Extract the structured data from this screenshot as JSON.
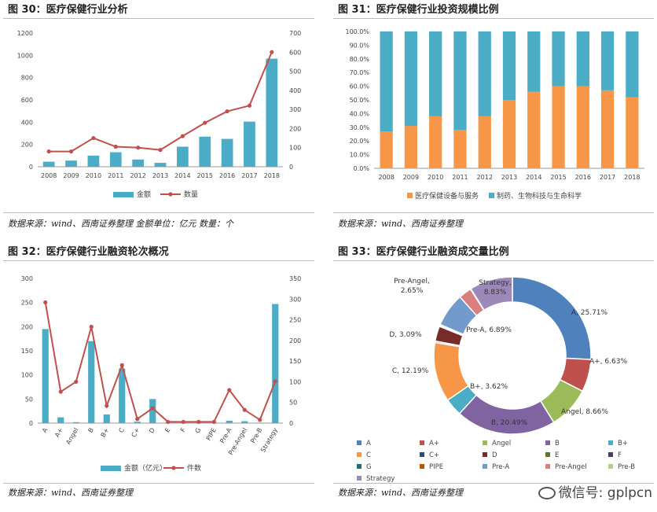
{
  "panels": {
    "p30": {
      "title": "图 30：医疗保健行业分析",
      "source": "数据来源：wind、西南证券整理  金额单位：亿元  数量：个"
    },
    "p31": {
      "title": "图 31：医疗保健行业投资规模比例",
      "source": "数据来源：wind、西南证券整理"
    },
    "p32": {
      "title": "图 32：医疗保健行业融资轮次概况",
      "source": "数据来源：wind、西南证券整理"
    },
    "p33": {
      "title": "图 33：医疗保健行业融资成交量比例",
      "source": "数据来源：wind、西南证券整理"
    }
  },
  "watermark": "微信号: gplpcn",
  "colors": {
    "bar": "#4bacc6",
    "line": "#c0504d",
    "orange": "#f79646"
  },
  "chart_data": [
    {
      "id": "fig30",
      "type": "bar",
      "categories": [
        "2008",
        "2009",
        "2010",
        "2011",
        "2012",
        "2013",
        "2014",
        "2015",
        "2016",
        "2017",
        "2018"
      ],
      "series": [
        {
          "name": "金额",
          "type": "bar",
          "axis": "left",
          "values": [
            45,
            55,
            100,
            130,
            65,
            35,
            180,
            270,
            250,
            405,
            970
          ]
        },
        {
          "name": "数量",
          "type": "line",
          "axis": "right",
          "values": [
            80,
            80,
            150,
            105,
            100,
            88,
            160,
            230,
            290,
            320,
            600
          ]
        }
      ],
      "ylim_left": [
        0,
        1200
      ],
      "yticks_left": [
        0,
        200,
        400,
        600,
        800,
        1000,
        1200
      ],
      "ylim_right": [
        0,
        700
      ],
      "yticks_right": [
        0,
        100,
        200,
        300,
        400,
        500,
        600,
        700
      ],
      "legend": "bottom"
    },
    {
      "id": "fig31",
      "type": "bar",
      "stacked": true,
      "categories": [
        "2008",
        "2009",
        "2010",
        "2011",
        "2012",
        "2013",
        "2014",
        "2015",
        "2016",
        "2017",
        "2018"
      ],
      "series": [
        {
          "name": "医疗保健设备与服务",
          "values": [
            27,
            31,
            38,
            28,
            38,
            50,
            56,
            60,
            60,
            57,
            52
          ]
        },
        {
          "name": "制药、生物科技与生命科学",
          "values": [
            73,
            69,
            62,
            72,
            62,
            50,
            44,
            40,
            40,
            43,
            48
          ]
        }
      ],
      "ylim": [
        0,
        100
      ],
      "yticks": [
        "0.0%",
        "10.0%",
        "20.0%",
        "30.0%",
        "40.0%",
        "50.0%",
        "60.0%",
        "70.0%",
        "80.0%",
        "90.0%",
        "100.0%"
      ],
      "legend": "bottom"
    },
    {
      "id": "fig32",
      "type": "bar",
      "categories": [
        "A",
        "A+",
        "Angel",
        "B",
        "B+",
        "C",
        "C+",
        "D",
        "E",
        "F",
        "G",
        "PIPE",
        "Pre-A",
        "Pre-Angel",
        "Pre-B",
        "Strategy"
      ],
      "series": [
        {
          "name": "金额（亿元）",
          "type": "bar",
          "axis": "left",
          "values": [
            195,
            12,
            2,
            170,
            18,
            113,
            3,
            50,
            1,
            1,
            1,
            1,
            5,
            4,
            1,
            247
          ]
        },
        {
          "name": "件数",
          "type": "line",
          "axis": "right",
          "values": [
            292,
            76,
            100,
            233,
            42,
            140,
            10,
            36,
            3,
            3,
            3,
            3,
            80,
            32,
            8,
            101
          ]
        }
      ],
      "ylim_left": [
        0,
        300
      ],
      "yticks_left": [
        0,
        50,
        100,
        150,
        200,
        250,
        300
      ],
      "ylim_right": [
        0,
        350
      ],
      "yticks_right": [
        0,
        50,
        100,
        150,
        200,
        250,
        300,
        350
      ],
      "legend": "bottom"
    },
    {
      "id": "fig33",
      "type": "pie",
      "donut": true,
      "slices": [
        {
          "name": "A",
          "value": 25.71,
          "label": "A, 25.71%",
          "color": "#4f81bd"
        },
        {
          "name": "A+",
          "value": 6.63,
          "label": "A+, 6.63%",
          "color": "#c0504d"
        },
        {
          "name": "Angel",
          "value": 8.66,
          "label": "Angel, 8.66%",
          "color": "#9bbb59"
        },
        {
          "name": "B",
          "value": 20.49,
          "label": "B, 20.49%",
          "color": "#8064a2"
        },
        {
          "name": "B+",
          "value": 3.62,
          "label": "B+, 3.62%",
          "color": "#4bacc6"
        },
        {
          "name": "C",
          "value": 12.19,
          "label": "C, 12.19%",
          "color": "#f79646"
        },
        {
          "name": "C+",
          "value": 0.3,
          "label": "",
          "color": "#2c4d75"
        },
        {
          "name": "D",
          "value": 3.09,
          "label": "D, 3.09%",
          "color": "#772c2a"
        },
        {
          "name": "E",
          "value": 0.1,
          "label": "",
          "color": "#5f7530"
        },
        {
          "name": "F",
          "value": 0.1,
          "label": "",
          "color": "#4d3b62"
        },
        {
          "name": "G",
          "value": 0.1,
          "label": "",
          "color": "#276a7c"
        },
        {
          "name": "PIPE",
          "value": 0.1,
          "label": "",
          "color": "#b65708"
        },
        {
          "name": "Pre-A",
          "value": 6.89,
          "label": "Pre-A, 6.89%",
          "color": "#729aca"
        },
        {
          "name": "Pre-Angel",
          "value": 2.65,
          "label": "Pre-Angel, 2.65%",
          "color": "#d7807e"
        },
        {
          "name": "Pre-B",
          "value": 0.1,
          "label": "",
          "color": "#b3cd8c"
        },
        {
          "name": "Strategy",
          "value": 8.83,
          "label": "Strategy, 8.83%",
          "color": "#9d89b8"
        }
      ],
      "legend": "bottom"
    }
  ]
}
